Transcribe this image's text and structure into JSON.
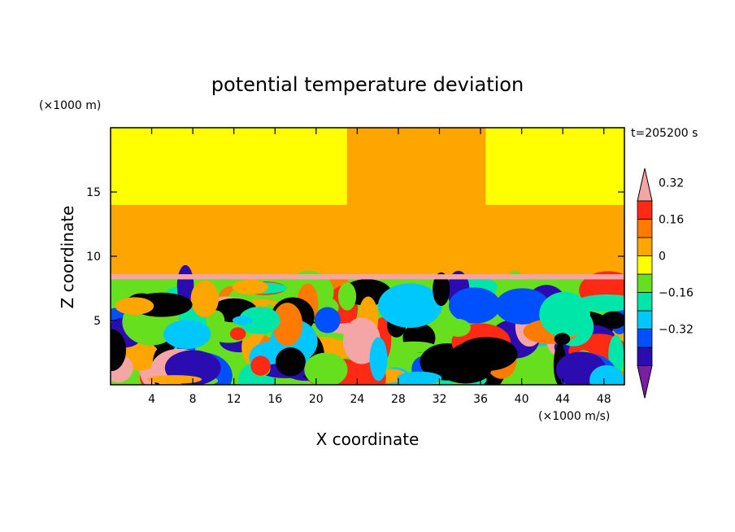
{
  "chart_data": {
    "type": "heatmap",
    "title": "potential temperature deviation",
    "xlabel": "X coordinate",
    "ylabel": "Z coordinate",
    "x_unit": "(×1000 m/s)",
    "y_unit": "(×1000 m)",
    "time_label": "t=205200 s",
    "xlim": [
      0,
      50
    ],
    "ylim": [
      0,
      20
    ],
    "x_ticks": [
      "4",
      "8",
      "12",
      "16",
      "20",
      "24",
      "28",
      "32",
      "36",
      "40",
      "44",
      "48"
    ],
    "y_ticks": [
      "5",
      "10",
      "15"
    ],
    "colorbar": {
      "levels": [
        -0.48,
        -0.4,
        -0.32,
        -0.24,
        -0.16,
        -0.08,
        0,
        0.08,
        0.16,
        0.24,
        0.32,
        0.4
      ],
      "labels": [
        "0.32",
        "0.16",
        "0",
        "−0.16",
        "−0.32"
      ],
      "colors": [
        "#7a1fa2",
        "#2a0cb0",
        "#0050ff",
        "#00c8ff",
        "#00e5a8",
        "#66e01e",
        "#ffff00",
        "#ffa500",
        "#ff7a00",
        "#ff2a14",
        "#f4a6a6"
      ],
      "extend": "both"
    },
    "regions": {
      "upper_layer_value": 0.04,
      "upper_band_value": -0.04,
      "inversion_value": 0.24,
      "upper_band_z": [
        14,
        20
      ],
      "inversion_z": [
        8.2,
        8.6
      ]
    }
  }
}
